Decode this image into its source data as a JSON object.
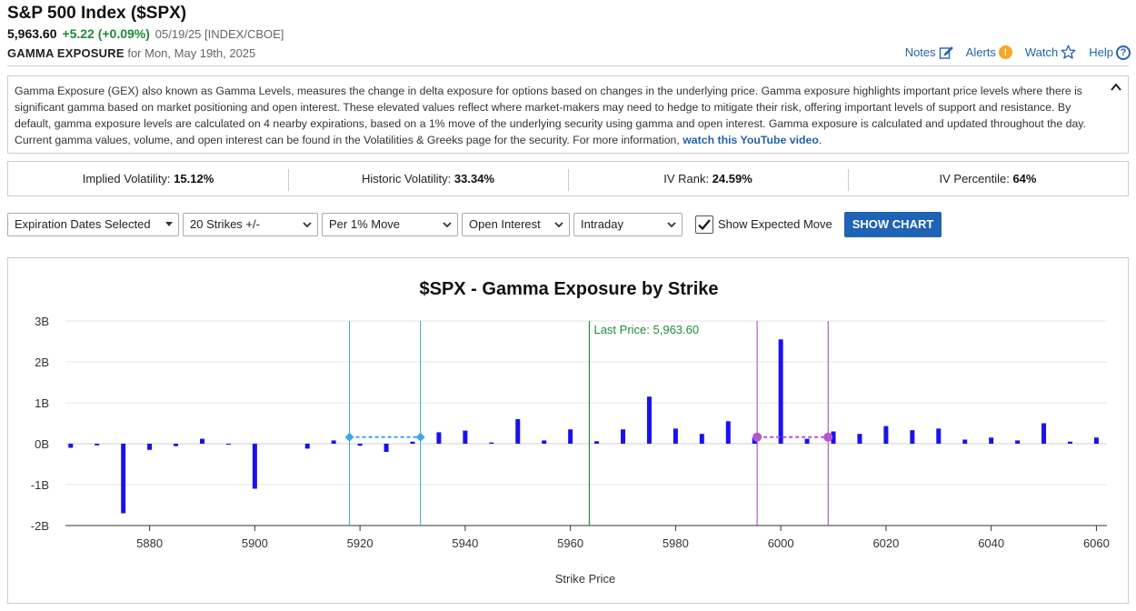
{
  "header": {
    "title": "S&P 500 Index ($SPX)",
    "price": "5,963.60",
    "change": "+5.22 (+0.09%)",
    "meta": "05/19/25 [INDEX/CBOE]",
    "section": "GAMMA EXPOSURE",
    "section_date": "for Mon, May 19th, 2025"
  },
  "links": {
    "notes": "Notes",
    "alerts": "Alerts",
    "watch": "Watch",
    "help": "Help"
  },
  "description": {
    "text": "Gamma Exposure (GEX) also known as Gamma Levels, measures the change in delta exposure for options based on changes in the underlying price. Gamma exposure highlights important price levels where there is significant gamma based on market positioning and open interest. These elevated values reflect where market-makers may need to hedge to mitigate their risk, offering important levels of support and resistance. By default, gamma exposure levels are calculated on 4 nearby expirations, based on a 1% move of the underlying security using gamma and open interest. Gamma exposure is calculated and updated throughout the day. Current gamma values, volume, and open interest can be found in the Volatilities & Greeks page for the security. For more information, ",
    "link_text": "watch this YouTube video",
    "tail": "."
  },
  "stats": [
    {
      "label": "Implied Volatility:",
      "value": "15.12%"
    },
    {
      "label": "Historic Volatility:",
      "value": "33.34%"
    },
    {
      "label": "IV Rank:",
      "value": "24.59%"
    },
    {
      "label": "IV Percentile:",
      "value": "64%"
    }
  ],
  "controls": {
    "expiration": "Expiration Dates Selected",
    "strikes": "20 Strikes +/-",
    "move": "Per 1% Move",
    "metric": "Open Interest",
    "timeframe": "Intraday",
    "show_expected_move": "Show Expected Move",
    "show_chart": "SHOW CHART"
  },
  "colors": {
    "bar": "#1a10f0",
    "last_price": "#1f8a3a",
    "teal_band": "#3aa6b9",
    "teal_marker": "#3ba7f0",
    "purple_band": "#9a3fb6",
    "purple_marker": "#b457cf"
  },
  "chart_data": {
    "type": "bar",
    "title": "$SPX - Gamma Exposure by Strike",
    "xlabel": "Strike Price",
    "ylabel": "",
    "ylim": [
      -2,
      3
    ],
    "xlim": [
      5864,
      6062
    ],
    "x_ticks": [
      5880,
      5900,
      5920,
      5940,
      5960,
      5980,
      6000,
      6020,
      6040,
      6060
    ],
    "y_ticks": [
      {
        "value": 3,
        "label": "3B"
      },
      {
        "value": 2,
        "label": "2B"
      },
      {
        "value": 1,
        "label": "1B"
      },
      {
        "value": 0,
        "label": "0B"
      },
      {
        "value": -1,
        "label": "-1B"
      },
      {
        "value": -2,
        "label": "-2B"
      }
    ],
    "grid": true,
    "strikes": [
      5865,
      5870,
      5875,
      5880,
      5885,
      5890,
      5895,
      5900,
      5910,
      5915,
      5920,
      5925,
      5930,
      5935,
      5940,
      5945,
      5950,
      5955,
      5960,
      5965,
      5970,
      5975,
      5980,
      5985,
      5990,
      5995,
      6000,
      6005,
      6010,
      6015,
      6020,
      6025,
      6030,
      6035,
      6040,
      6045,
      6050,
      6055,
      6060
    ],
    "values": [
      -0.1,
      -0.04,
      -1.7,
      -0.15,
      -0.06,
      0.12,
      -0.02,
      -1.1,
      -0.12,
      0.08,
      -0.05,
      -0.2,
      0.05,
      0.28,
      0.32,
      0.03,
      0.6,
      0.08,
      0.35,
      0.06,
      0.35,
      1.15,
      0.37,
      0.24,
      0.55,
      0.15,
      2.55,
      0.12,
      0.3,
      0.24,
      0.43,
      0.33,
      0.37,
      0.1,
      0.15,
      0.08,
      0.5,
      0.05,
      0.15
    ],
    "last_price": {
      "value": 5963.6,
      "label": "Last Price: 5,963.60"
    },
    "expected_move_bands": [
      {
        "x1": 5918,
        "x2": 5931.5,
        "y": 0.16,
        "color": "teal"
      },
      {
        "x1": 5995.5,
        "x2": 6009,
        "y": 0.16,
        "color": "purple"
      }
    ]
  }
}
